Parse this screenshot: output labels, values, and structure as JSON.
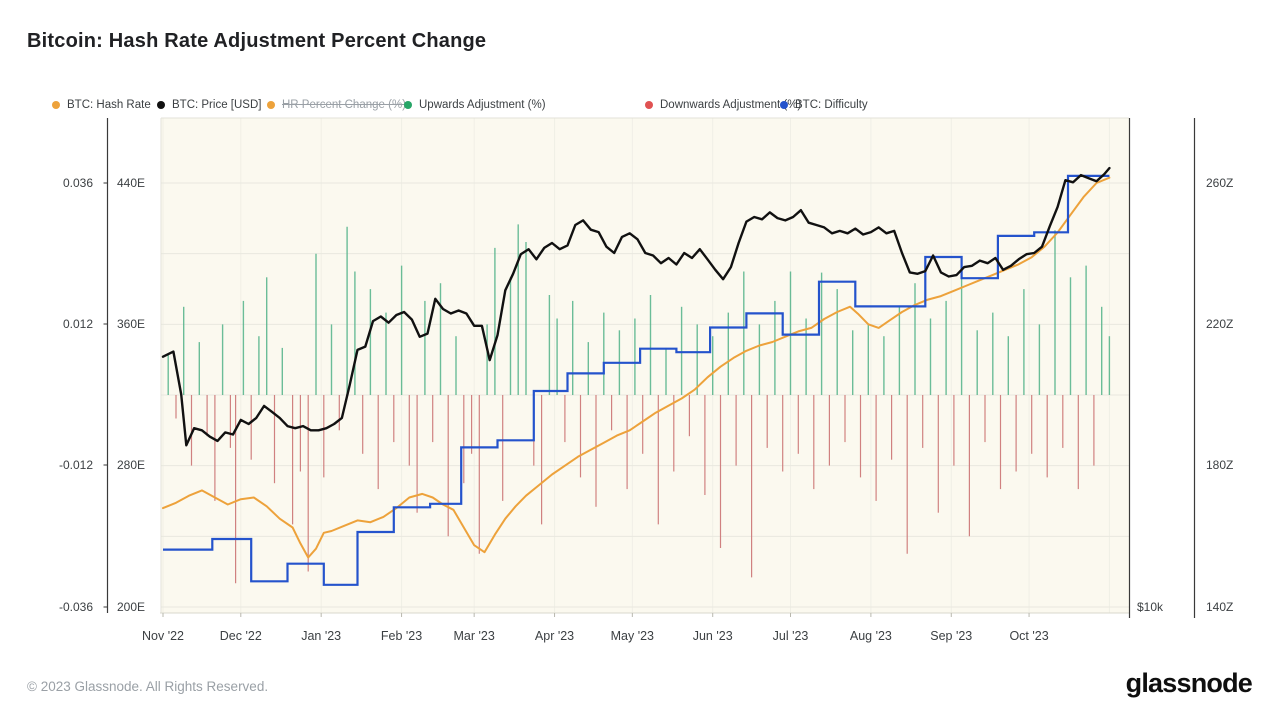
{
  "title": "Bitcoin: Hash Rate Adjustment Percent Change",
  "footer": {
    "copyright": "© 2023 Glassnode. All Rights Reserved.",
    "logo_text": "glassnode"
  },
  "legend": {
    "items": [
      {
        "label": "BTC: Hash Rate",
        "color": "#EDA23B",
        "disabled": false
      },
      {
        "label": "BTC: Price [USD]",
        "color": "#111111",
        "disabled": false
      },
      {
        "label": "HR Percent Change (%)",
        "color": "#EDA23B",
        "disabled": true
      },
      {
        "label": "Upwards Adjustment (%)",
        "color": "#27A567",
        "disabled": false
      },
      {
        "label": "Downwards Adjustment (%)",
        "color": "#E05252",
        "disabled": false
      },
      {
        "label": "BTC: Difficulty",
        "color": "#2453CC",
        "disabled": false
      }
    ]
  },
  "chart_data": {
    "type": "mixed",
    "title": "Bitcoin: Hash Rate Adjustment Percent Change",
    "x_domain": [
      "Nov 1 2022",
      "Nov 1 2023"
    ],
    "x_ticks": [
      "Nov '22",
      "Dec '22",
      "Jan '23",
      "Feb '23",
      "Mar '23",
      "Apr '23",
      "May '23",
      "Jun '23",
      "Jul '23",
      "Aug '23",
      "Sep '23",
      "Oct '23"
    ],
    "grid": true,
    "legend_position": "top",
    "colors": {
      "plot_background": "#FBF9EF",
      "grid_line": "#E9E8DF",
      "axis_line": "#3A3A3A",
      "tick_text": "#3C4043"
    },
    "axes": {
      "percent_left": {
        "tick_labels": [
          "0.036",
          "0.012",
          "-0.012",
          "-0.036"
        ],
        "values": [
          0.036,
          0.012,
          -0.012,
          -0.036
        ],
        "range": [
          -0.042,
          0.047
        ]
      },
      "hashrate_left": {
        "tick_labels": [
          "440E",
          "360E",
          "280E",
          "200E"
        ],
        "values": [
          440,
          360,
          280,
          200
        ],
        "unit": "EH/s"
      },
      "price_right": {
        "tick_labels": [
          "$10k"
        ],
        "values": [
          10
        ],
        "scale": "log",
        "unit": "USD"
      },
      "difficulty_right": {
        "tick_labels": [
          "260Z",
          "220Z",
          "180Z",
          "140Z"
        ],
        "values": [
          260,
          220,
          180,
          140
        ],
        "unit": "Z"
      }
    },
    "series": [
      {
        "name": "BTC: Price [USD]",
        "type": "line",
        "axis": "price",
        "color": "#111111",
        "unit": "USD thousands",
        "d": [
          0,
          4,
          7,
          9,
          12,
          15,
          18,
          21,
          24,
          27,
          30,
          33,
          36,
          39,
          42,
          45,
          48,
          51,
          54,
          57,
          60,
          63,
          66,
          69,
          72,
          75,
          78,
          81,
          84,
          87,
          90,
          93,
          96,
          99,
          102,
          105,
          108,
          111,
          114,
          117,
          120,
          123,
          126,
          129,
          132,
          135,
          138,
          141,
          144,
          147,
          150,
          153,
          156,
          159,
          162,
          165,
          168,
          171,
          174,
          177,
          180,
          183,
          186,
          189,
          192,
          195,
          198,
          201,
          204,
          207,
          210,
          213,
          216,
          219,
          222,
          225,
          228,
          231,
          234,
          237,
          240,
          243,
          246,
          249,
          252,
          255,
          258,
          261,
          264,
          267,
          270,
          273,
          276,
          279,
          282,
          285,
          288,
          291,
          294,
          297,
          300,
          303,
          306,
          309,
          312,
          315,
          318,
          321,
          324,
          327,
          330,
          333,
          336,
          339,
          342,
          345,
          348,
          351,
          354,
          357,
          360,
          363,
          365
        ],
        "v": [
          20.5,
          20.8,
          18.4,
          15.9,
          16.7,
          16.6,
          16.3,
          16.1,
          16.5,
          16.4,
          17.1,
          16.9,
          17.2,
          17.8,
          17.5,
          17.2,
          16.8,
          16.7,
          16.8,
          16.6,
          16.6,
          16.7,
          16.9,
          17.2,
          18.9,
          20.9,
          21.1,
          22.7,
          23.0,
          22.6,
          23.1,
          23.3,
          22.8,
          21.7,
          21.9,
          24.2,
          23.5,
          23.2,
          23.4,
          23.2,
          22.4,
          22.4,
          20.3,
          21.8,
          24.8,
          26.0,
          27.5,
          27.9,
          27.1,
          28.0,
          28.4,
          27.9,
          28.2,
          29.9,
          30.3,
          29.5,
          29.3,
          28.1,
          27.6,
          28.9,
          29.2,
          28.7,
          27.6,
          27.4,
          26.8,
          27.2,
          26.7,
          27.6,
          27.2,
          27.9,
          27.1,
          26.3,
          25.6,
          26.5,
          28.4,
          30.2,
          30.6,
          30.4,
          31.0,
          30.5,
          30.3,
          30.6,
          31.2,
          30.1,
          29.9,
          29.7,
          29.2,
          29.4,
          29.2,
          29.6,
          29.1,
          29.3,
          29.7,
          29.2,
          29.4,
          27.6,
          26.1,
          26.0,
          26.2,
          27.4,
          26.1,
          25.8,
          25.9,
          26.5,
          26.6,
          27.0,
          26.8,
          27.2,
          26.3,
          26.6,
          27.1,
          27.5,
          27.6,
          28.1,
          29.8,
          31.5,
          34.0,
          33.8,
          34.5,
          34.2,
          33.9,
          34.6,
          35.2
        ]
      },
      {
        "name": "BTC: Hash Rate",
        "type": "line",
        "axis": "hashrate",
        "color": "#EDA23B",
        "unit": "EH/s",
        "d": [
          0,
          5,
          10,
          15,
          20,
          25,
          30,
          35,
          40,
          45,
          50,
          53,
          56,
          59,
          62,
          65,
          70,
          75,
          80,
          85,
          90,
          95,
          100,
          104,
          108,
          112,
          116,
          120,
          124,
          128,
          132,
          136,
          140,
          145,
          150,
          155,
          160,
          165,
          170,
          175,
          180,
          185,
          190,
          195,
          200,
          205,
          210,
          215,
          220,
          225,
          230,
          235,
          240,
          245,
          250,
          255,
          260,
          265,
          268,
          272,
          276,
          280,
          285,
          290,
          295,
          300,
          305,
          310,
          315,
          320,
          325,
          330,
          335,
          340,
          345,
          350,
          355,
          360,
          365
        ],
        "v": [
          256,
          259,
          263,
          266,
          262,
          258,
          261,
          262,
          257,
          250,
          245,
          236,
          228,
          233,
          242,
          243,
          246,
          249,
          248,
          251,
          256,
          262,
          264,
          262,
          258,
          255,
          245,
          235,
          231,
          241,
          250,
          257,
          263,
          269,
          275,
          280,
          285,
          289,
          293,
          297,
          300,
          305,
          310,
          314,
          318,
          323,
          330,
          336,
          341,
          345,
          348,
          350,
          353,
          356,
          358,
          363,
          367,
          370,
          366,
          360,
          358,
          362,
          367,
          371,
          374,
          376,
          379,
          382,
          385,
          388,
          391,
          394,
          398,
          404,
          412,
          422,
          432,
          440,
          443
        ]
      },
      {
        "name": "BTC: Difficulty",
        "type": "step",
        "axis": "difficulty",
        "color": "#2453CC",
        "unit": "Z",
        "d": [
          0,
          19,
          34,
          48,
          62,
          75,
          89,
          103,
          115,
          129,
          143,
          156,
          170,
          184,
          198,
          211,
          225,
          239,
          253,
          267,
          294,
          308,
          322,
          336,
          349,
          365
        ],
        "v": [
          156,
          159,
          147,
          152,
          146,
          161,
          168,
          169,
          185,
          187,
          201,
          206,
          209,
          213,
          212,
          219,
          223,
          217,
          232,
          225,
          239,
          233,
          245,
          246,
          262,
          262
        ]
      },
      {
        "name": "Hash Rate Adjustment (%)",
        "type": "bar",
        "axis": "percent",
        "up_name": "Upwards Adjustment (%)",
        "down_name": "Downwards Adjustment (%)",
        "up_color": "#53B389",
        "down_color": "#CE7B7B",
        "d": [
          2,
          5,
          8,
          11,
          14,
          17,
          20,
          23,
          26,
          28,
          31,
          34,
          37,
          40,
          43,
          46,
          50,
          53,
          56,
          59,
          62,
          65,
          68,
          71,
          74,
          77,
          80,
          83,
          86,
          89,
          92,
          95,
          98,
          101,
          104,
          107,
          110,
          113,
          116,
          119,
          122,
          125,
          128,
          131,
          134,
          137,
          140,
          143,
          146,
          149,
          152,
          155,
          158,
          161,
          164,
          167,
          170,
          173,
          176,
          179,
          182,
          185,
          188,
          191,
          194,
          197,
          200,
          203,
          206,
          209,
          212,
          215,
          218,
          221,
          224,
          227,
          230,
          233,
          236,
          239,
          242,
          245,
          248,
          251,
          254,
          257,
          260,
          263,
          266,
          269,
          272,
          275,
          278,
          281,
          284,
          287,
          290,
          293,
          296,
          299,
          302,
          305,
          308,
          311,
          314,
          317,
          320,
          323,
          326,
          329,
          332,
          335,
          338,
          341,
          344,
          347,
          350,
          353,
          356,
          359,
          362,
          365
        ],
        "v": [
          0.007,
          -0.004,
          0.015,
          -0.012,
          0.009,
          -0.007,
          -0.018,
          0.012,
          -0.009,
          -0.032,
          0.016,
          -0.011,
          0.01,
          0.02,
          -0.015,
          0.008,
          -0.022,
          -0.013,
          -0.03,
          0.024,
          -0.014,
          0.012,
          -0.006,
          0.0286,
          0.021,
          -0.01,
          0.018,
          -0.016,
          0.014,
          -0.008,
          0.022,
          -0.012,
          -0.02,
          0.016,
          -0.008,
          0.019,
          -0.024,
          0.01,
          -0.015,
          -0.01,
          -0.027,
          0.012,
          0.025,
          -0.018,
          0.02,
          0.029,
          0.026,
          -0.012,
          -0.022,
          0.017,
          0.013,
          -0.008,
          0.016,
          -0.014,
          0.009,
          -0.019,
          0.014,
          -0.006,
          0.011,
          -0.016,
          0.013,
          -0.01,
          0.017,
          -0.022,
          0.008,
          -0.013,
          0.015,
          -0.007,
          0.012,
          -0.017,
          0.01,
          -0.026,
          0.014,
          -0.012,
          0.021,
          -0.031,
          0.012,
          -0.009,
          0.016,
          -0.013,
          0.021,
          -0.01,
          0.013,
          -0.016,
          0.0208,
          -0.012,
          0.018,
          -0.008,
          0.011,
          -0.014,
          0.012,
          -0.018,
          0.01,
          -0.011,
          0.015,
          -0.027,
          0.019,
          -0.009,
          0.013,
          -0.02,
          0.016,
          -0.012,
          0.02,
          -0.024,
          0.011,
          -0.008,
          0.014,
          -0.016,
          0.01,
          -0.013,
          0.018,
          -0.01,
          0.012,
          -0.014,
          0.028,
          -0.009,
          0.02,
          -0.016,
          0.022,
          -0.012,
          0.015,
          0.01
        ]
      }
    ]
  }
}
